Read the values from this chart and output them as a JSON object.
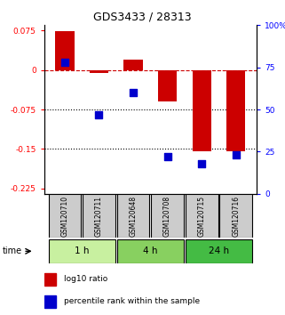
{
  "title": "GDS3433 / 28313",
  "samples": [
    "GSM120710",
    "GSM120711",
    "GSM120648",
    "GSM120708",
    "GSM120715",
    "GSM120716"
  ],
  "log10_ratio": [
    0.073,
    -0.005,
    0.02,
    -0.06,
    -0.155,
    -0.155
  ],
  "percentile_rank": [
    78,
    47,
    60,
    22,
    18,
    23
  ],
  "groups": [
    {
      "label": "1 h",
      "indices": [
        0,
        1
      ],
      "color": "#c8f0a0"
    },
    {
      "label": "4 h",
      "indices": [
        2,
        3
      ],
      "color": "#88d060"
    },
    {
      "label": "24 h",
      "indices": [
        4,
        5
      ],
      "color": "#44bb44"
    }
  ],
  "ylim_left": [
    -0.235,
    0.085
  ],
  "ylim_right": [
    0,
    100
  ],
  "yticks_left": [
    0.075,
    0,
    -0.075,
    -0.15,
    -0.225
  ],
  "yticks_right": [
    100,
    75,
    50,
    25,
    0
  ],
  "bar_color": "#cc0000",
  "dot_color": "#0000cc",
  "zero_line_color": "#cc0000",
  "dotted_line_color": "#000000",
  "bar_width": 0.55,
  "dot_size": 35,
  "sample_box_color": "#cccccc",
  "title_fontsize": 9,
  "tick_fontsize": 6.5,
  "sample_fontsize": 5.5,
  "group_fontsize": 7.5,
  "legend_fontsize": 6.5
}
